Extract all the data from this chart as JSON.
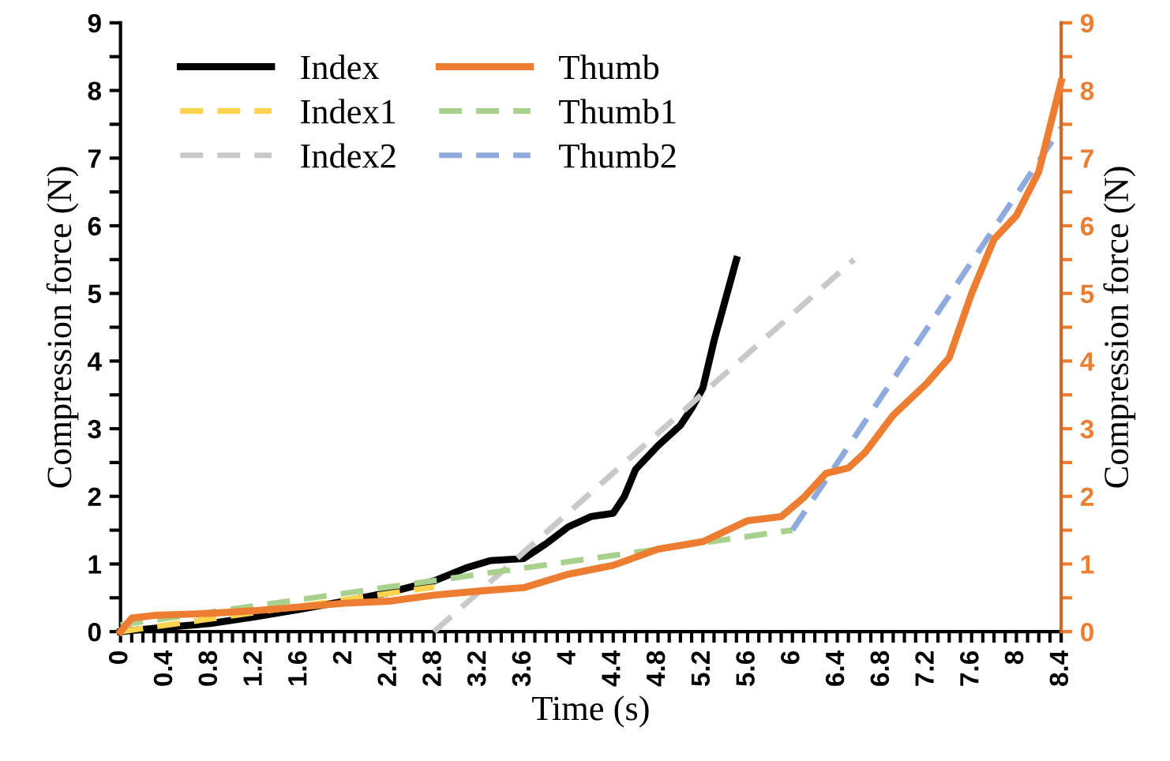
{
  "chart_data": {
    "type": "line",
    "xlabel": "Time (s)",
    "ylabel": "Compression force (N)",
    "y2label": "Compression force (N)",
    "grid": false,
    "legend": "top left",
    "marker": "none",
    "xlim": [
      0,
      8.4
    ],
    "ylim": [
      0,
      9
    ],
    "y2lim": [
      0,
      9
    ],
    "xticks": [
      0,
      {
        "value": 0.1,
        "label": null
      },
      {
        "value": 0.2,
        "label": null
      },
      {
        "value": 0.3,
        "label": null
      },
      0.4,
      {
        "value": 0.5,
        "label": null
      },
      {
        "value": 0.6,
        "label": null
      },
      {
        "value": 0.7,
        "label": null
      },
      0.8,
      {
        "value": 0.9,
        "label": null
      },
      {
        "value": 1.0,
        "label": null
      },
      {
        "value": 1.1,
        "label": null
      },
      1.2,
      {
        "value": 1.3,
        "label": null
      },
      {
        "value": 1.4,
        "label": null
      },
      {
        "value": 1.5,
        "label": null
      },
      1.6,
      {
        "value": 1.7,
        "label": null
      },
      {
        "value": 1.8,
        "label": null
      },
      {
        "value": 1.9,
        "label": null
      },
      2,
      {
        "value": 2.1,
        "label": null
      },
      {
        "value": 2.2,
        "label": null
      },
      {
        "value": 2.3,
        "label": null
      },
      2.4,
      {
        "value": 2.5,
        "label": null
      },
      {
        "value": 2.6,
        "label": null
      },
      {
        "value": 2.7,
        "label": null
      },
      2.8,
      {
        "value": 2.9,
        "label": null
      },
      {
        "value": 3.0,
        "label": null
      },
      {
        "value": 3.1,
        "label": null
      },
      3.2,
      {
        "value": 3.3,
        "label": null
      },
      {
        "value": 3.4,
        "label": null
      },
      {
        "value": 3.5,
        "label": null
      },
      3.6,
      {
        "value": 3.7,
        "label": null
      },
      {
        "value": 3.8,
        "label": null
      },
      {
        "value": 3.9,
        "label": null
      },
      4,
      {
        "value": 4.1,
        "label": null
      },
      {
        "value": 4.2,
        "label": null
      },
      {
        "value": 4.3,
        "label": null
      },
      4.4,
      {
        "value": 4.5,
        "label": null
      },
      {
        "value": 4.6,
        "label": null
      },
      {
        "value": 4.7,
        "label": null
      },
      4.8,
      {
        "value": 4.9,
        "label": null
      },
      {
        "value": 5.0,
        "label": null
      },
      {
        "value": 5.1,
        "label": null
      },
      5.2,
      {
        "value": 5.3,
        "label": null
      },
      {
        "value": 5.4,
        "label": null
      },
      {
        "value": 5.5,
        "label": null
      },
      5.6,
      {
        "value": 5.7,
        "label": null
      },
      {
        "value": 5.8,
        "label": null
      },
      {
        "value": 5.9,
        "label": null
      },
      6,
      {
        "value": 6.1,
        "label": null
      },
      {
        "value": 6.2,
        "label": null
      },
      {
        "value": 6.3,
        "label": null
      },
      6.4,
      {
        "value": 6.5,
        "label": null
      },
      {
        "value": 6.6,
        "label": null
      },
      {
        "value": 6.7,
        "label": null
      },
      6.8,
      {
        "value": 6.9,
        "label": null
      },
      {
        "value": 7.0,
        "label": null
      },
      {
        "value": 7.1,
        "label": null
      },
      7.2,
      {
        "value": 7.3,
        "label": null
      },
      {
        "value": 7.4,
        "label": null
      },
      {
        "value": 7.5,
        "label": null
      },
      7.6,
      {
        "value": 7.7,
        "label": null
      },
      {
        "value": 7.8,
        "label": null
      },
      {
        "value": 7.9,
        "label": null
      },
      8,
      {
        "value": 8.1,
        "label": null
      },
      {
        "value": 8.2,
        "label": null
      },
      {
        "value": 8.3,
        "label": null
      },
      8.4
    ],
    "yticks": [
      0,
      {
        "value": 0.5,
        "label": null
      },
      1,
      {
        "value": 1.5,
        "label": null
      },
      2,
      {
        "value": 2.5,
        "label": null
      },
      3,
      {
        "value": 3.5,
        "label": null
      },
      4,
      {
        "value": 4.5,
        "label": null
      },
      5,
      {
        "value": 5.5,
        "label": null
      },
      6,
      {
        "value": 6.5,
        "label": null
      },
      7,
      {
        "value": 7.5,
        "label": null
      },
      8,
      {
        "value": 8.5,
        "label": null
      },
      9
    ],
    "y2ticks": [
      0,
      {
        "value": 0.5,
        "label": null
      },
      1,
      {
        "value": 1.5,
        "label": null
      },
      2,
      {
        "value": 2.5,
        "label": null
      },
      3,
      {
        "value": 3.5,
        "label": null
      },
      4,
      {
        "value": 4.5,
        "label": null
      },
      5,
      {
        "value": 5.5,
        "label": null
      },
      6,
      {
        "value": 6.5,
        "label": null
      },
      7,
      {
        "value": 7.5,
        "label": null
      },
      8,
      {
        "value": 8.5,
        "label": null
      },
      9
    ],
    "series": [
      {
        "name": "Index",
        "color": "#000000",
        "line_style": "solid",
        "x": [
          0,
          0.3,
          0.8,
          1.2,
          1.6,
          2.0,
          2.4,
          2.8,
          3.1,
          3.3,
          3.6,
          3.8,
          4.0,
          4.2,
          4.4,
          4.5,
          4.6,
          4.8,
          5.0,
          5.1,
          5.2,
          5.3,
          5.4,
          5.5
        ],
        "values": [
          0,
          0.05,
          0.12,
          0.22,
          0.33,
          0.45,
          0.58,
          0.75,
          0.95,
          1.05,
          1.08,
          1.3,
          1.55,
          1.7,
          1.75,
          2.0,
          2.4,
          2.75,
          3.05,
          3.3,
          3.6,
          4.3,
          4.9,
          5.5
        ]
      },
      {
        "name": "Index1",
        "color": "#ffd34f",
        "line_style": "dashed",
        "x": [
          0,
          2.8
        ],
        "values": [
          0,
          0.66
        ]
      },
      {
        "name": "Index2",
        "color": "#c9c9c9",
        "line_style": "dashed",
        "x": [
          2.8,
          6.55
        ],
        "values": [
          0,
          5.5
        ]
      },
      {
        "name": "Thumb",
        "color": "#ed7d31",
        "line_style": "solid",
        "axis": "y2",
        "x": [
          0,
          0.1,
          0.3,
          0.8,
          1.2,
          2.0,
          2.4,
          2.8,
          3.2,
          3.6,
          4.0,
          4.4,
          4.8,
          5.2,
          5.6,
          5.9,
          6.1,
          6.3,
          6.5,
          6.65,
          6.9,
          7.2,
          7.4,
          7.6,
          7.8,
          8.0,
          8.2,
          8.4
        ],
        "values": [
          0,
          0.2,
          0.24,
          0.27,
          0.31,
          0.42,
          0.45,
          0.54,
          0.6,
          0.65,
          0.85,
          0.98,
          1.22,
          1.33,
          1.64,
          1.7,
          1.98,
          2.34,
          2.42,
          2.65,
          3.2,
          3.67,
          4.05,
          5.0,
          5.8,
          6.15,
          6.8,
          8.13
        ]
      },
      {
        "name": "Thumb1",
        "color": "#a9d18e",
        "line_style": "dashed",
        "x": [
          0,
          6.0
        ],
        "values": [
          0.1,
          1.5
        ]
      },
      {
        "name": "Thumb2",
        "color": "#8faadc",
        "line_style": "dashed",
        "x": [
          6.0,
          8.4
        ],
        "values": [
          1.5,
          7.45
        ]
      }
    ]
  }
}
